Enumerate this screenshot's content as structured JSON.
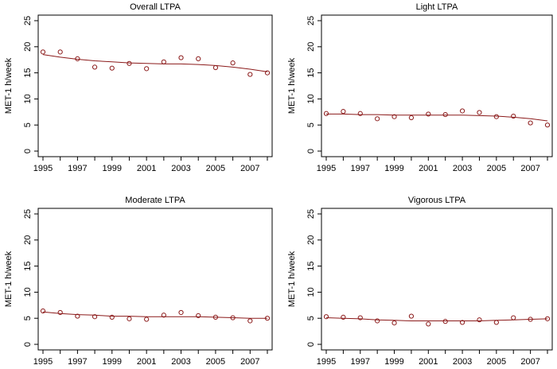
{
  "chart_data": [
    {
      "type": "scatter",
      "title": "Overall LTPA",
      "xlabel": "",
      "ylabel": "MET-1 h/week",
      "xlim": [
        1995,
        2008
      ],
      "ylim": [
        0,
        25
      ],
      "x_ticks": [
        "1995",
        "1997",
        "1999",
        "2001",
        "2003",
        "2005",
        "2007"
      ],
      "y_ticks": [
        "0",
        "5",
        "10",
        "15",
        "20",
        "25"
      ],
      "grid": false,
      "point_color": "#8b1a1a",
      "line_color": "#8b1a1a",
      "x": [
        1995,
        1996,
        1997,
        1998,
        1999,
        2000,
        2001,
        2002,
        2003,
        2004,
        2005,
        2006,
        2007,
        2008
      ],
      "y": [
        19.0,
        19.0,
        17.7,
        16.1,
        15.9,
        16.8,
        15.8,
        17.1,
        17.9,
        17.7,
        16.0,
        16.9,
        14.7,
        15.0
      ],
      "trend": [
        18.5,
        18.0,
        17.6,
        17.3,
        17.1,
        16.9,
        16.8,
        16.7,
        16.7,
        16.6,
        16.4,
        16.1,
        15.7,
        15.2
      ]
    },
    {
      "type": "scatter",
      "title": "Light LTPA",
      "xlabel": "",
      "ylabel": "MET-1 h/week",
      "xlim": [
        1995,
        2008
      ],
      "ylim": [
        0,
        25
      ],
      "x_ticks": [
        "1995",
        "1997",
        "1999",
        "2001",
        "2003",
        "2005",
        "2007"
      ],
      "y_ticks": [
        "0",
        "5",
        "10",
        "15",
        "20",
        "25"
      ],
      "grid": false,
      "point_color": "#8b1a1a",
      "line_color": "#8b1a1a",
      "x": [
        1995,
        1996,
        1997,
        1998,
        1999,
        2000,
        2001,
        2002,
        2003,
        2004,
        2005,
        2006,
        2007,
        2008
      ],
      "y": [
        7.2,
        7.6,
        7.2,
        6.2,
        6.6,
        6.4,
        7.1,
        7.0,
        7.7,
        7.4,
        6.6,
        6.7,
        5.4,
        5.0
      ],
      "trend": [
        7.1,
        7.1,
        7.0,
        7.0,
        6.9,
        6.9,
        6.9,
        6.9,
        6.9,
        6.8,
        6.7,
        6.5,
        6.2,
        5.8
      ]
    },
    {
      "type": "scatter",
      "title": "Moderate LTPA",
      "xlabel": "",
      "ylabel": "MET-1 h/week",
      "xlim": [
        1995,
        2008
      ],
      "ylim": [
        0,
        25
      ],
      "x_ticks": [
        "1995",
        "1997",
        "1999",
        "2001",
        "2003",
        "2005",
        "2007"
      ],
      "y_ticks": [
        "0",
        "5",
        "10",
        "15",
        "20",
        "25"
      ],
      "grid": false,
      "point_color": "#8b1a1a",
      "line_color": "#8b1a1a",
      "x": [
        1995,
        1996,
        1997,
        1998,
        1999,
        2000,
        2001,
        2002,
        2003,
        2004,
        2005,
        2006,
        2007,
        2008
      ],
      "y": [
        6.4,
        6.1,
        5.4,
        5.3,
        5.2,
        4.9,
        4.8,
        5.6,
        6.1,
        5.5,
        5.2,
        5.1,
        4.5,
        5.0
      ],
      "trend": [
        6.2,
        5.9,
        5.7,
        5.6,
        5.4,
        5.4,
        5.3,
        5.3,
        5.3,
        5.3,
        5.2,
        5.1,
        5.0,
        5.0
      ]
    },
    {
      "type": "scatter",
      "title": "Vigorous LTPA",
      "xlabel": "",
      "ylabel": "MET-1 h/week",
      "xlim": [
        1995,
        2008
      ],
      "ylim": [
        0,
        25
      ],
      "x_ticks": [
        "1995",
        "1997",
        "1999",
        "2001",
        "2003",
        "2005",
        "2007"
      ],
      "y_ticks": [
        "0",
        "5",
        "10",
        "15",
        "20",
        "25"
      ],
      "grid": false,
      "point_color": "#8b1a1a",
      "line_color": "#8b1a1a",
      "x": [
        1995,
        1996,
        1997,
        1998,
        1999,
        2000,
        2001,
        2002,
        2003,
        2004,
        2005,
        2006,
        2007,
        2008
      ],
      "y": [
        5.3,
        5.2,
        5.1,
        4.5,
        4.1,
        5.4,
        3.9,
        4.4,
        4.2,
        4.7,
        4.2,
        5.1,
        4.8,
        4.9
      ],
      "trend": [
        5.1,
        5.0,
        4.9,
        4.7,
        4.6,
        4.5,
        4.5,
        4.5,
        4.5,
        4.5,
        4.6,
        4.7,
        4.8,
        4.9
      ]
    }
  ]
}
